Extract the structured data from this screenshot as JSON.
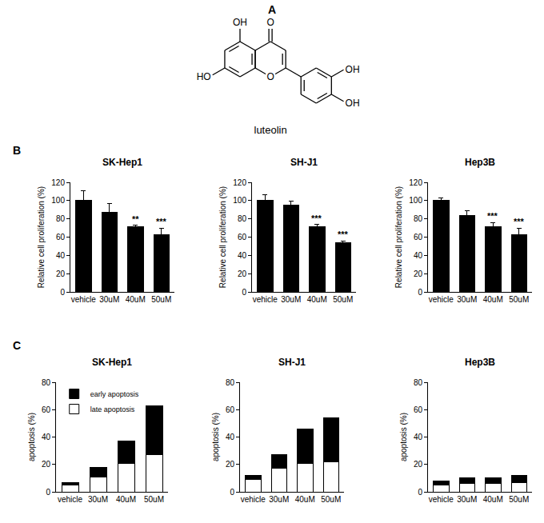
{
  "panel_labels": [
    "A",
    "B",
    "C"
  ],
  "structure": {
    "name": "luteolin",
    "labels": [
      "OH",
      "O",
      "HO",
      "O",
      "OH",
      "OH"
    ]
  },
  "chart_data": [
    {
      "type": "bar",
      "title": "SK-Hep1",
      "ylabel": "Relative cell proliferation (%)",
      "categories": [
        "vehicle",
        "30uM",
        "40uM",
        "50uM"
      ],
      "values": [
        100,
        87,
        71,
        63
      ],
      "error": [
        11,
        10,
        2,
        7
      ],
      "significance": [
        null,
        null,
        "**",
        "***"
      ],
      "color": "#000000",
      "ylim": [
        0,
        120
      ],
      "yticks": [
        0,
        20,
        40,
        60,
        80,
        100,
        120
      ],
      "grid": false
    },
    {
      "type": "bar",
      "title": "SH-J1",
      "ylabel": "Relative cell proliferation (%)",
      "categories": [
        "vehicle",
        "30uM",
        "40uM",
        "50uM"
      ],
      "values": [
        100,
        95,
        71,
        54
      ],
      "error": [
        6,
        4,
        3,
        2
      ],
      "significance": [
        null,
        null,
        "***",
        "***"
      ],
      "color": "#000000",
      "ylim": [
        0,
        120
      ],
      "yticks": [
        0,
        20,
        40,
        60,
        80,
        100,
        120
      ],
      "grid": false
    },
    {
      "type": "bar",
      "title": "Hep3B",
      "ylabel": "Relative cell proliferation (%)",
      "categories": [
        "vehicle",
        "30uM",
        "40uM",
        "50uM"
      ],
      "values": [
        100,
        84,
        71,
        63
      ],
      "error": [
        3,
        5,
        5,
        7
      ],
      "significance": [
        null,
        null,
        "***",
        "***"
      ],
      "color": "#000000",
      "ylim": [
        0,
        120
      ],
      "yticks": [
        0,
        20,
        40,
        60,
        80,
        100,
        120
      ],
      "grid": false
    },
    {
      "type": "bar",
      "title": "SK-Hep1",
      "ylabel": "apoptosis (%)",
      "stacked": true,
      "legend": "upper left",
      "categories": [
        "vehicle",
        "30uM",
        "40uM",
        "50uM"
      ],
      "series": [
        {
          "name": "late apoptosis",
          "color": "#ffffff",
          "values": [
            5,
            11,
            21,
            27
          ]
        },
        {
          "name": "early apoptosis",
          "color": "#000000",
          "values": [
            2,
            7,
            16,
            36
          ]
        }
      ],
      "ylim": [
        0,
        80
      ],
      "yticks": [
        0,
        20,
        40,
        60,
        80
      ],
      "grid": false
    },
    {
      "type": "bar",
      "title": "SH-J1",
      "ylabel": "apoptosis (%)",
      "stacked": true,
      "categories": [
        "vehicle",
        "30uM",
        "40uM",
        "50uM"
      ],
      "series": [
        {
          "color": "#ffffff",
          "values": [
            9,
            17,
            21,
            22
          ]
        },
        {
          "color": "#000000",
          "values": [
            3,
            10,
            25,
            32
          ]
        }
      ],
      "ylim": [
        0,
        80
      ],
      "yticks": [
        0,
        20,
        40,
        60,
        80
      ],
      "grid": false
    },
    {
      "type": "bar",
      "title": "Hep3B",
      "ylabel": "apoptosis (%)",
      "stacked": true,
      "categories": [
        "vehicle",
        "30uM",
        "40uM",
        "50uM"
      ],
      "series": [
        {
          "color": "#ffffff",
          "values": [
            5,
            6,
            6,
            7
          ]
        },
        {
          "color": "#000000",
          "values": [
            3,
            4,
            4,
            5
          ]
        }
      ],
      "ylim": [
        0,
        80
      ],
      "yticks": [
        0,
        20,
        40,
        60,
        80
      ],
      "grid": false
    }
  ]
}
